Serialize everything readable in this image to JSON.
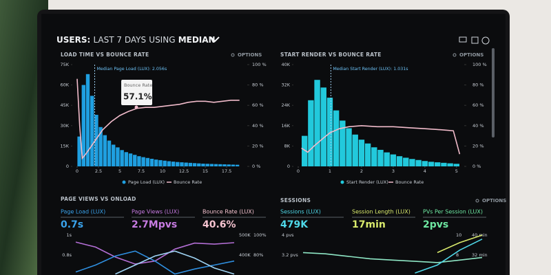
{
  "header": {
    "parts": [
      "USERS:",
      "LAST 7 DAYS",
      "USING",
      "MEDIAN"
    ]
  },
  "panels": [
    {
      "title": "LOAD TIME VS BOUNCE RATE",
      "options": "OPTIONS",
      "chart": {
        "type": "histogram",
        "xlim": [
          0,
          19.75
        ],
        "xticks": [
          0,
          2.5,
          5,
          7.5,
          10,
          12.5,
          15,
          17.5
        ],
        "ylim": [
          0,
          75000
        ],
        "yticks": [
          0,
          {
            "value": 15000,
            "label": "15K"
          },
          {
            "value": 30000,
            "label": "30K"
          },
          {
            "value": 45000,
            "label": "45K"
          },
          {
            "value": 60000,
            "label": "60K"
          },
          {
            "value": 75000,
            "label": "75K"
          }
        ],
        "y2lim": [
          0,
          100
        ],
        "y2ticks": [
          {
            "value": 0,
            "label": "0 %"
          },
          {
            "value": 20,
            "label": "20 %"
          },
          {
            "value": 40,
            "label": "40 %"
          },
          {
            "value": 60,
            "label": "60 %"
          },
          {
            "value": 80,
            "label": "80 %"
          },
          {
            "value": 100,
            "label": "100 %"
          }
        ],
        "median": 2.056,
        "annotation": "Median Page Load (LUX): 2.056s",
        "tooltip": {
          "title": "Bounce Rate",
          "label": "57.1%"
        },
        "bins": [
          0,
          0.5,
          1,
          1.5,
          2,
          2.5,
          3,
          3.5,
          4,
          4.5,
          5,
          5.5,
          6,
          6.5,
          7,
          7.5,
          8,
          8.5,
          9,
          9.5,
          10,
          10.5,
          11,
          11.5,
          12,
          12.5,
          13,
          13.5,
          14,
          14.5,
          15,
          15.5,
          16,
          16.5,
          17,
          17.5,
          18,
          18.5,
          19
        ],
        "series": [
          {
            "name": "Page Load (LUX)",
            "color": "#1f9fe0",
            "values": [
              22000,
              60000,
              68000,
              52000,
              38000,
              29000,
              23000,
              19000,
              16000,
              14000,
              12000,
              10500,
              9500,
              8500,
              7500,
              6800,
              6200,
              5600,
              5000,
              4600,
              4200,
              3800,
              3500,
              3200,
              3000,
              2800,
              2600,
              2400,
              2200,
              2000,
              1900,
              1800,
              1700,
              1600,
              1500,
              1400,
              1300,
              1200
            ]
          },
          {
            "name": "Bounce Rate",
            "color": "#f2bccb",
            "axis": "y2",
            "x": [
              0,
              0.3,
              0.6,
              1,
              1.5,
              2,
              2.5,
              3,
              4,
              5,
              6,
              7,
              8,
              9,
              10,
              11,
              12,
              13,
              14,
              15,
              16,
              17,
              18,
              19
            ],
            "values": [
              86,
              40,
              8,
              12,
              18,
              24,
              30,
              36,
              44,
              50,
              54,
              57,
              58,
              58,
              59,
              60,
              61,
              63,
              64,
              64,
              63,
              64,
              65,
              65
            ]
          }
        ]
      }
    },
    {
      "title": "START RENDER VS BOUNCE RATE",
      "options": "OPTIONS",
      "chart": {
        "type": "histogram",
        "xlim": [
          0,
          5.2
        ],
        "xticks": [
          0,
          1,
          2,
          3,
          4,
          5
        ],
        "ylim": [
          0,
          40000
        ],
        "yticks": [
          0,
          {
            "value": 8000,
            "label": "8K"
          },
          {
            "value": 16000,
            "label": "16K"
          },
          {
            "value": 24000,
            "label": "24K"
          },
          {
            "value": 32000,
            "label": "32K"
          },
          {
            "value": 40000,
            "label": "40K"
          }
        ],
        "y2lim": [
          0,
          100
        ],
        "y2ticks": [
          {
            "value": 0,
            "label": "0 %"
          },
          {
            "value": 20,
            "label": "20 %"
          },
          {
            "value": 40,
            "label": "40 %"
          },
          {
            "value": 60,
            "label": "60 %"
          },
          {
            "value": 80,
            "label": "80 %"
          },
          {
            "value": 100,
            "label": "100 %"
          }
        ],
        "median": 1.031,
        "annotation": "Median Start Render (LUX): 1.031s",
        "bins": [
          0.1,
          0.3,
          0.5,
          0.7,
          0.9,
          1.1,
          1.3,
          1.5,
          1.7,
          1.9,
          2.1,
          2.3,
          2.5,
          2.7,
          2.9,
          3.1,
          3.3,
          3.5,
          3.7,
          3.9,
          4.1,
          4.3,
          4.5,
          4.7,
          4.9,
          5.1
        ],
        "series": [
          {
            "name": "Start Render (LUX)",
            "color": "#22c9dc",
            "values": [
              12000,
              26000,
              34000,
              31000,
              27000,
              22000,
              18000,
              15000,
              12500,
              10500,
              9000,
              7500,
              6500,
              5500,
              4700,
              4000,
              3400,
              2900,
              2500,
              2100,
              1800,
              1600,
              1400,
              1200,
              1000
            ]
          },
          {
            "name": "Bounce Rate",
            "color": "#f2bccb",
            "axis": "y2",
            "x": [
              0.1,
              0.3,
              0.5,
              0.8,
              1,
              1.3,
              1.6,
              2,
              2.5,
              3,
              3.5,
              4,
              4.5,
              4.9,
              5.1
            ],
            "values": [
              18,
              14,
              20,
              28,
              33,
              37,
              39,
              40,
              39,
              39,
              38,
              37,
              36,
              35,
              12
            ]
          }
        ]
      }
    },
    {
      "title": "PAGE VIEWS VS ONLOAD",
      "metrics": [
        {
          "label": "Page Load (LUX)",
          "value": "0.7s",
          "color": "#3aa3ec"
        },
        {
          "label": "Page Views (LUX)",
          "value": "2.7Mpvs",
          "color": "#c77be2"
        },
        {
          "label": "Bounce Rate (LUX)",
          "value": "40.6%",
          "color": "#f5c3cf"
        }
      ],
      "chart": {
        "type": "line",
        "axes": [
          {
            "lim": [
              0.6,
              1
            ],
            "ticks": [
              {
                "value": 1,
                "label": "1s"
              },
              {
                "value": 0.8,
                "label": "0.8s"
              }
            ]
          },
          {
            "lim": [
              300000,
              500000
            ],
            "ticks": [
              {
                "value": 500000,
                "label": "500K"
              },
              {
                "value": 400000,
                "label": "400K"
              }
            ]
          },
          {
            "lim": [
              60,
              100
            ],
            "ticks": [
              {
                "value": 100,
                "label": "100%"
              },
              {
                "value": 80,
                "label": "80%"
              }
            ]
          }
        ],
        "series": [
          {
            "axis": 1,
            "color": "#b46fd6",
            "values": [
              465000,
              440000,
              390000,
              355000,
              370000,
              430000,
              460000,
              455000,
              462000
            ]
          },
          {
            "axis": 0,
            "color": "#2f8fe0",
            "values": [
              0.63,
              0.7,
              0.79,
              0.84,
              0.74,
              0.61,
              0.66,
              0.7,
              0.74
            ]
          },
          {
            "axis": 2,
            "color": "#9fd4f4",
            "values": [
              null,
              null,
              61,
              70,
              79,
              84,
              77,
              67,
              61
            ]
          }
        ]
      }
    },
    {
      "title": "SESSIONS",
      "options": "OPTIONS",
      "metrics": [
        {
          "label": "Sessions (LUX)",
          "value": "479K",
          "color": "#4fd8e8"
        },
        {
          "label": "Session Length (LUX)",
          "value": "17min",
          "color": "#d9ea6c"
        },
        {
          "label": "PVs Per Session (LUX)",
          "value": "2pvs",
          "color": "#6ee8a2"
        }
      ],
      "chart": {
        "type": "line",
        "axes": [
          {
            "lim": [
              2.4,
              4
            ],
            "ticks": [
              {
                "value": 4,
                "label": "4 pvs"
              },
              {
                "value": 3.2,
                "label": "3.2 pvs"
              }
            ]
          },
          {
            "lim": [
              6,
              10
            ],
            "ticks": [
              10,
              8
            ]
          },
          {
            "lim": [
              24,
              40
            ],
            "ticks": [
              {
                "value": 40,
                "label": "40 min"
              },
              {
                "value": 32,
                "label": "32 min"
              }
            ]
          }
        ],
        "series": [
          {
            "axis": 0,
            "color": "#8fe8c6",
            "values": [
              3.3,
              3.25,
              3.15,
              3.05,
              3.0,
              2.95,
              2.9,
              3.0,
              3.1
            ]
          },
          {
            "axis": 1,
            "color": "#4fd8e8",
            "values": [
              null,
              null,
              null,
              null,
              null,
              6.2,
              7.0,
              8.5,
              9.6
            ]
          },
          {
            "axis": 2,
            "color": "#d9ea6c",
            "values": [
              null,
              null,
              null,
              null,
              null,
              null,
              33,
              37,
              40
            ]
          }
        ]
      }
    }
  ]
}
